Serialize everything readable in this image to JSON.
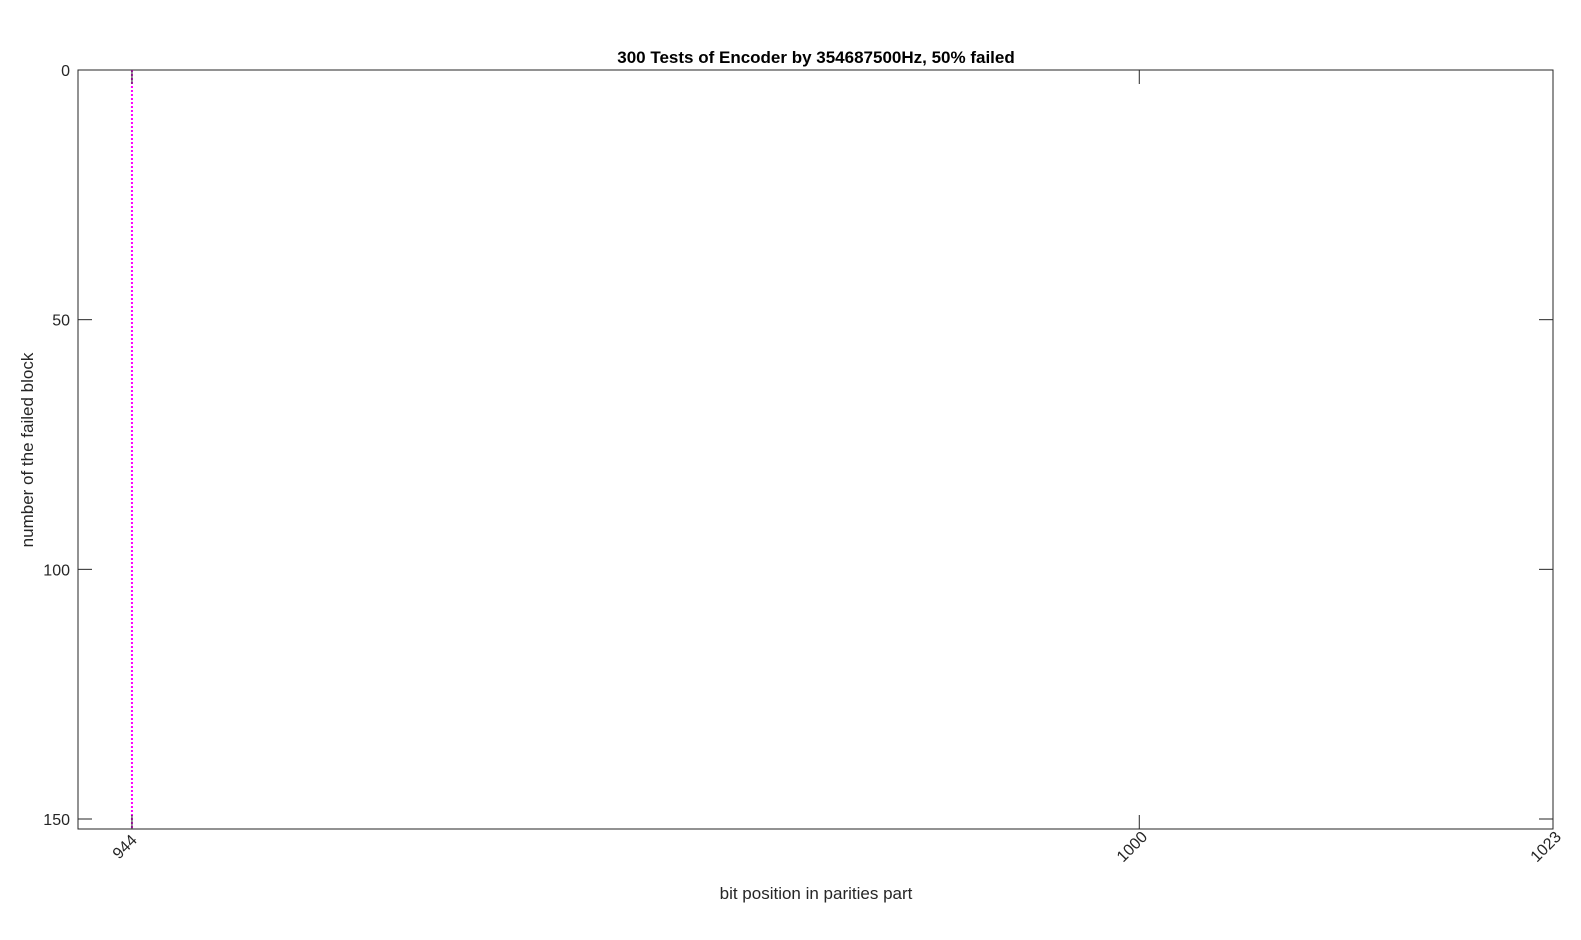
{
  "chart_data": {
    "type": "line",
    "title": "300 Tests of Encoder by 354687500Hz, 50% failed",
    "xlabel": "bit position in parities part",
    "ylabel": "number of the failed block",
    "xlim": [
      941,
      1023
    ],
    "ylim": [
      0,
      152
    ],
    "y_reversed": true,
    "x_ticks": [
      944,
      1000,
      1023
    ],
    "y_ticks": [
      0,
      50,
      100,
      150
    ],
    "grid": false,
    "series": [
      {
        "style": "dotted",
        "color": "#FF00FF",
        "x": [
          944,
          944
        ],
        "y": [
          0,
          152
        ]
      }
    ]
  }
}
